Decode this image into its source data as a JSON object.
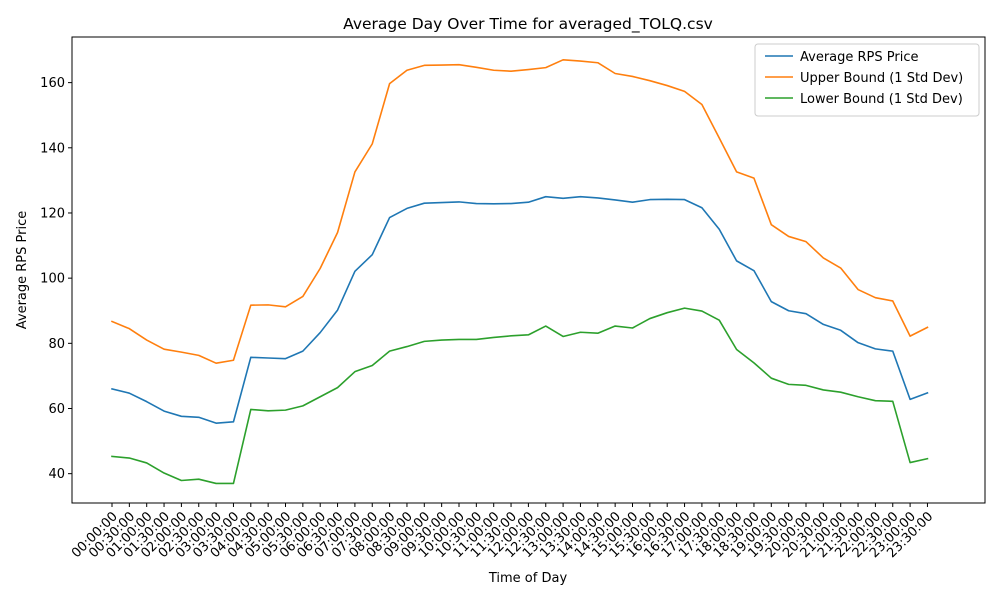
{
  "chart_data": {
    "type": "line",
    "title": "Average Day Over Time for averaged_TOLQ.csv",
    "xlabel": "Time of Day",
    "ylabel": "Average RPS Price",
    "ylim": [
      31,
      174
    ],
    "yticks": [
      40,
      60,
      80,
      100,
      120,
      140,
      160
    ],
    "grid": false,
    "legend_position": "upper-right",
    "categories": [
      "00:00:00",
      "00:30:00",
      "01:00:00",
      "01:30:00",
      "02:00:00",
      "02:30:00",
      "03:00:00",
      "03:30:00",
      "04:00:00",
      "04:30:00",
      "05:00:00",
      "05:30:00",
      "06:00:00",
      "06:30:00",
      "07:00:00",
      "07:30:00",
      "08:00:00",
      "08:30:00",
      "09:00:00",
      "09:30:00",
      "10:00:00",
      "10:30:00",
      "11:00:00",
      "11:30:00",
      "12:00:00",
      "12:30:00",
      "13:00:00",
      "13:30:00",
      "14:00:00",
      "14:30:00",
      "15:00:00",
      "15:30:00",
      "16:00:00",
      "16:30:00",
      "17:00:00",
      "17:30:00",
      "18:00:00",
      "18:30:00",
      "19:00:00",
      "19:30:00",
      "20:00:00",
      "20:30:00",
      "21:00:00",
      "21:30:00",
      "22:00:00",
      "22:30:00",
      "23:00:00",
      "23:30:00"
    ],
    "series": [
      {
        "name": "Average RPS Price",
        "color": "#1f77b4",
        "values": [
          66,
          64.7,
          62.1,
          59.2,
          57.6,
          57.3,
          55.5,
          55.9,
          75.7,
          75.5,
          75.3,
          77.6,
          83.3,
          90.2,
          102.1,
          107.2,
          118.6,
          121.4,
          123,
          123.2,
          123.4,
          122.9,
          122.8,
          122.9,
          123.3,
          125,
          124.5,
          125,
          124.6,
          124,
          123.3,
          124.1,
          124.2,
          124.1,
          121.6,
          115,
          105.3,
          102.3,
          92.8,
          90,
          89.1,
          85.8,
          84,
          80.2,
          78.3,
          77.6,
          62.8,
          64.8
        ]
      },
      {
        "name": "Upper Bound (1 Std Dev)",
        "color": "#ff7f0e",
        "values": [
          86.7,
          84.5,
          81,
          78.2,
          77.3,
          76.3,
          73.9,
          74.8,
          91.7,
          91.8,
          91.2,
          94.4,
          103,
          114,
          132.6,
          141.2,
          159.7,
          163.8,
          165.3,
          165.4,
          165.5,
          164.7,
          163.8,
          163.5,
          164,
          164.6,
          167,
          166.6,
          166.1,
          162.8,
          161.9,
          160.6,
          159.1,
          157.3,
          153.3,
          143,
          132.6,
          130.7,
          116.4,
          112.8,
          111.2,
          106.2,
          103.1,
          96.5,
          94,
          93,
          82.2,
          84.9
        ]
      },
      {
        "name": "Lower Bound (1 Std Dev)",
        "color": "#2ca02c",
        "values": [
          45.3,
          44.8,
          43.3,
          40.2,
          37.9,
          38.3,
          37,
          37,
          59.7,
          59.3,
          59.5,
          60.8,
          63.6,
          66.4,
          71.3,
          73.2,
          77.6,
          79,
          80.6,
          81,
          81.2,
          81.2,
          81.8,
          82.3,
          82.6,
          85.3,
          82.1,
          83.4,
          83.1,
          85.3,
          84.7,
          87.6,
          89.4,
          90.8,
          89.9,
          87.1,
          78.1,
          74,
          69.3,
          67.4,
          67.1,
          65.7,
          65,
          63.6,
          62.4,
          62.2,
          43.4,
          44.6
        ]
      }
    ]
  }
}
